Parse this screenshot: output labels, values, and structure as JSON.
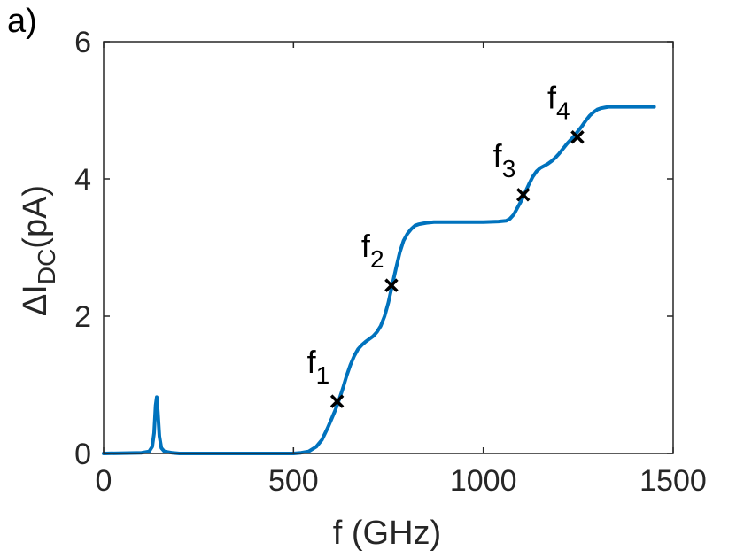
{
  "panel_label": "a)",
  "chart_data": {
    "type": "line",
    "xlabel": "f (GHz)",
    "ylabel": {
      "base": "ΔI",
      "subscript": "DC",
      "suffix": "(pA)"
    },
    "xlim": [
      0,
      1500
    ],
    "ylim": [
      0,
      6
    ],
    "xticks": [
      0,
      500,
      1000,
      1500
    ],
    "yticks": [
      0,
      2,
      4,
      6
    ],
    "grid": false,
    "line_color": "#0072BD",
    "series": [
      {
        "x": [
          0,
          100,
          120,
          128,
          133,
          137,
          140,
          143,
          147,
          152,
          160,
          180,
          200,
          300,
          400,
          500,
          520,
          540,
          560,
          575,
          590,
          600,
          610,
          620,
          630,
          640,
          650,
          660,
          670,
          680,
          690,
          700,
          710,
          720,
          730,
          740,
          750,
          760,
          770,
          780,
          790,
          800,
          810,
          820,
          830,
          840,
          850,
          870,
          900,
          950,
          1000,
          1040,
          1060,
          1070,
          1080,
          1090,
          1100,
          1110,
          1120,
          1130,
          1140,
          1150,
          1160,
          1170,
          1180,
          1190,
          1200,
          1210,
          1220,
          1230,
          1240,
          1250,
          1260,
          1270,
          1280,
          1290,
          1300,
          1310,
          1320,
          1330,
          1340,
          1360,
          1400,
          1450
        ],
        "y": [
          0.0,
          0.01,
          0.03,
          0.1,
          0.3,
          0.7,
          0.82,
          0.6,
          0.25,
          0.08,
          0.03,
          0.01,
          0.0,
          0.0,
          0.0,
          0.0,
          0.01,
          0.03,
          0.1,
          0.2,
          0.37,
          0.5,
          0.63,
          0.78,
          0.95,
          1.13,
          1.29,
          1.42,
          1.52,
          1.58,
          1.63,
          1.67,
          1.71,
          1.77,
          1.86,
          2.0,
          2.2,
          2.45,
          2.7,
          2.93,
          3.1,
          3.2,
          3.27,
          3.32,
          3.34,
          3.35,
          3.36,
          3.37,
          3.37,
          3.37,
          3.37,
          3.38,
          3.39,
          3.42,
          3.48,
          3.58,
          3.68,
          3.8,
          3.92,
          4.03,
          4.11,
          4.16,
          4.19,
          4.22,
          4.26,
          4.31,
          4.37,
          4.44,
          4.51,
          4.57,
          4.63,
          4.7,
          4.77,
          4.85,
          4.92,
          4.97,
          5.01,
          5.03,
          5.04,
          5.05,
          5.05,
          5.05,
          5.05,
          5.05
        ]
      }
    ],
    "markers": [
      {
        "label": "f",
        "sub": "1",
        "x": 615,
        "y": 0.76
      },
      {
        "label": "f",
        "sub": "2",
        "x": 758,
        "y": 2.45
      },
      {
        "label": "f",
        "sub": "3",
        "x": 1105,
        "y": 3.77
      },
      {
        "label": "f",
        "sub": "4",
        "x": 1248,
        "y": 4.61
      }
    ]
  }
}
